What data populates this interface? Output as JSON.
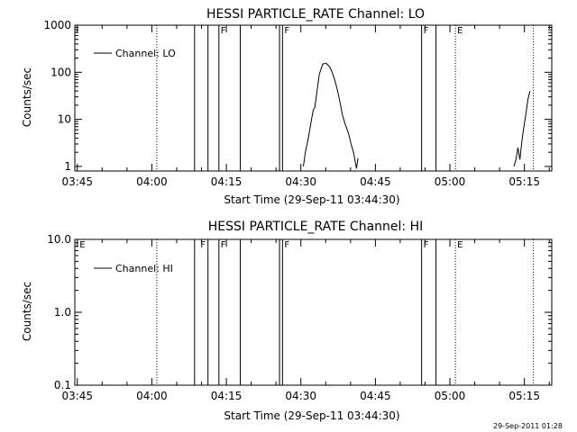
{
  "footer": {
    "timestamp": "29-Sep-2011 01:28"
  },
  "colors": {
    "background": "#ffffff",
    "foreground": "#000000"
  },
  "chart_data": [
    {
      "type": "line",
      "title": "HESSI PARTICLE_RATE Channel: LO",
      "xlabel": "Start Time (29-Sep-11 03:44:30)",
      "ylabel": "Counts/sec",
      "x_units": "minutes after 03:44:30",
      "xlim": [
        0,
        96
      ],
      "x_ticks": [
        0.5,
        15.5,
        30.5,
        45.5,
        60.5,
        75.5,
        90.5
      ],
      "x_tick_labels": [
        "03:45",
        "04:00",
        "04:15",
        "04:30",
        "04:45",
        "05:00",
        "05:15"
      ],
      "y_scale": "log",
      "ylim": [
        0.8,
        1000
      ],
      "y_ticks": [
        1,
        10,
        100,
        1000
      ],
      "y_tick_labels": [
        "1",
        "10",
        "100",
        "1000"
      ],
      "legend": {
        "label": "Channel: LO",
        "position": "top-left"
      },
      "solid_markers": [
        24.1,
        26.8,
        29.0,
        33.3,
        41.2,
        41.8,
        69.8,
        72.7
      ],
      "dotted_markers": [
        16.5,
        76.6,
        92.3
      ],
      "marker_labels": [
        {
          "label": "F",
          "x": 29.0
        },
        {
          "label": "F",
          "x": 41.8
        },
        {
          "label": "F",
          "x": 69.8
        },
        {
          "label": "E",
          "x": 76.6
        }
      ],
      "series": [
        {
          "segments": [
            {
              "x": [
                46.0,
                46.4,
                47.0,
                47.5,
                48.0,
                48.3,
                48.6,
                49.2,
                49.9,
                50.6,
                51.3,
                51.8,
                52.3,
                52.9,
                53.4,
                53.9,
                54.4,
                55.1,
                55.6,
                56.1,
                56.5,
                56.7,
                57.0
              ],
              "y": [
                1,
                2,
                4,
                8,
                16,
                18,
                30,
                90,
                150,
                155,
                130,
                100,
                70,
                40,
                22,
                12,
                8,
                5,
                3,
                2,
                1.2,
                0.9,
                1.5
              ]
            },
            {
              "x": [
                88.4,
                88.8,
                89.2,
                89.6,
                90.0,
                90.4,
                90.8,
                91.2,
                91.6
              ],
              "y": [
                1.0,
                1.4,
                2.5,
                1.4,
                3.5,
                7,
                13,
                26,
                40
              ]
            }
          ]
        }
      ]
    },
    {
      "type": "line",
      "title": "HESSI PARTICLE_RATE Channel: HI",
      "xlabel": "Start Time (29-Sep-11 03:44:30)",
      "ylabel": "Counts/sec",
      "x_units": "minutes after 03:44:30",
      "xlim": [
        0,
        96
      ],
      "x_ticks": [
        0.5,
        15.5,
        30.5,
        45.5,
        60.5,
        75.5,
        90.5
      ],
      "x_tick_labels": [
        "03:45",
        "04:00",
        "04:15",
        "04:30",
        "04:45",
        "05:00",
        "05:15"
      ],
      "y_scale": "log",
      "ylim": [
        0.1,
        10
      ],
      "y_ticks": [
        0.1,
        1,
        10
      ],
      "y_tick_labels": [
        "0.1",
        "1.0",
        "10.0"
      ],
      "legend": {
        "label": "Channel: HI",
        "position": "top-left"
      },
      "solid_markers": [
        24.1,
        26.8,
        29.0,
        33.3,
        41.2,
        41.8,
        69.8,
        72.7
      ],
      "dotted_markers": [
        16.5,
        76.6,
        92.3
      ],
      "marker_labels": [
        {
          "label": "E",
          "x": 0.6
        },
        {
          "label": "F",
          "x": 24.9
        },
        {
          "label": "F",
          "x": 29.0
        },
        {
          "label": "F",
          "x": 41.8
        },
        {
          "label": "F",
          "x": 69.8
        },
        {
          "label": "E",
          "x": 76.6
        }
      ],
      "series": [
        {
          "segments": []
        }
      ]
    }
  ]
}
